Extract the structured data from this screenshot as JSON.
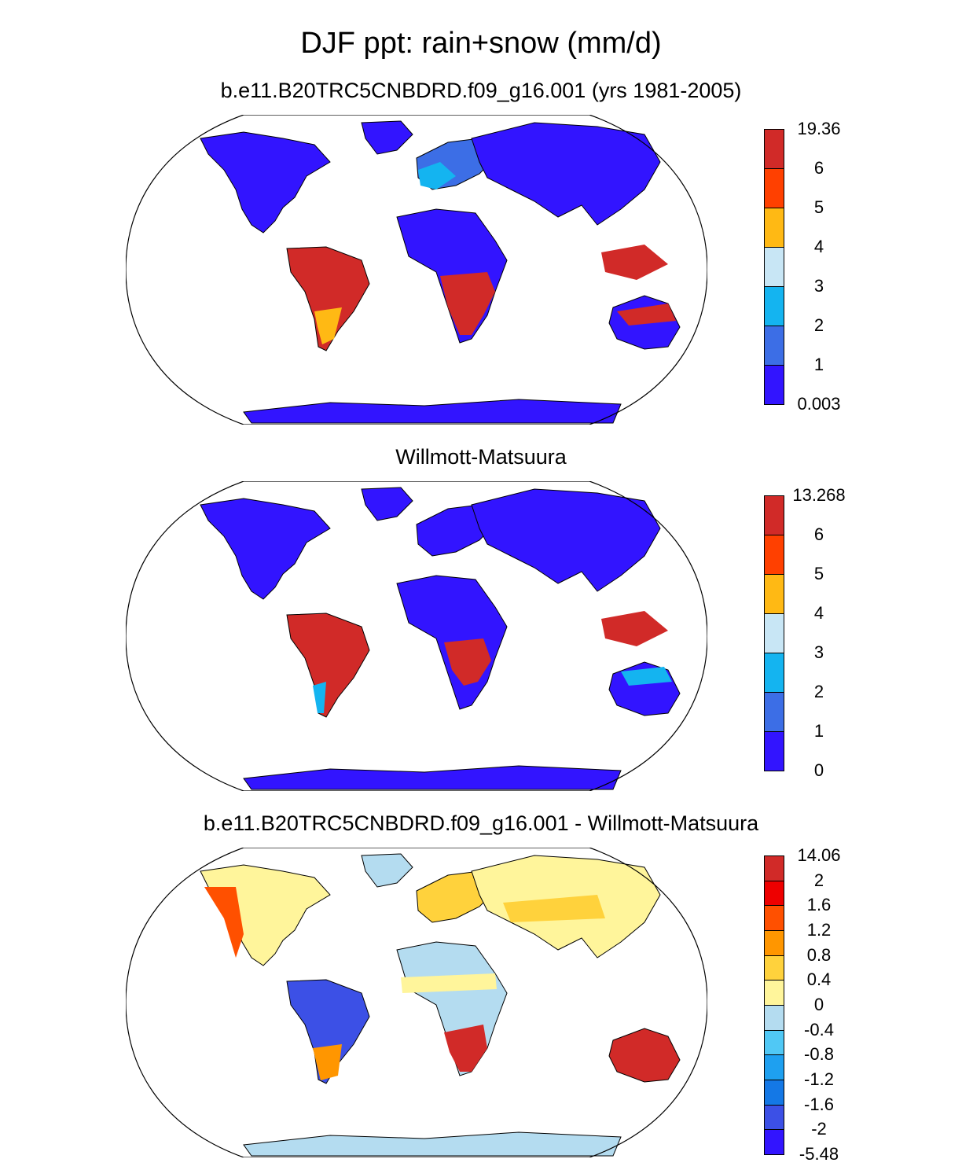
{
  "title": "DJF ppt: rain+snow (mm/d)",
  "panels": [
    {
      "title": "b.e11.B20TRC5CNBDRD.f09_g16.001 (yrs 1981-2005)",
      "colorbar": {
        "labels": [
          "19.36",
          "6",
          "5",
          "4",
          "3",
          "2",
          "1",
          "0.003"
        ],
        "colors": [
          "#d12a28",
          "#ff4000",
          "#ffb914",
          "#c8e6f5",
          "#14b4f0",
          "#3c6ee6",
          "#3214ff"
        ]
      }
    },
    {
      "title": "Willmott-Matsuura",
      "colorbar": {
        "labels": [
          "13.268",
          "6",
          "5",
          "4",
          "3",
          "2",
          "1",
          "0"
        ],
        "colors": [
          "#d12a28",
          "#ff4000",
          "#ffb914",
          "#c8e6f5",
          "#14b4f0",
          "#3c6ee6",
          "#3214ff"
        ]
      }
    },
    {
      "title": "b.e11.B20TRC5CNBDRD.f09_g16.001 - Willmott-Matsuura",
      "colorbar": {
        "labels": [
          "14.06",
          "2",
          "1.6",
          "1.2",
          "0.8",
          "0.4",
          "0",
          "-0.4",
          "-0.8",
          "-1.2",
          "-1.6",
          "-2",
          "-5.48"
        ],
        "colors": [
          "#d12a28",
          "#ee0000",
          "#ff5000",
          "#ff9600",
          "#ffd23c",
          "#fff59b",
          "#b4dcf0",
          "#50c8f5",
          "#1ea0f0",
          "#1478e6",
          "#3c50e6",
          "#3214ff"
        ]
      }
    }
  ]
}
